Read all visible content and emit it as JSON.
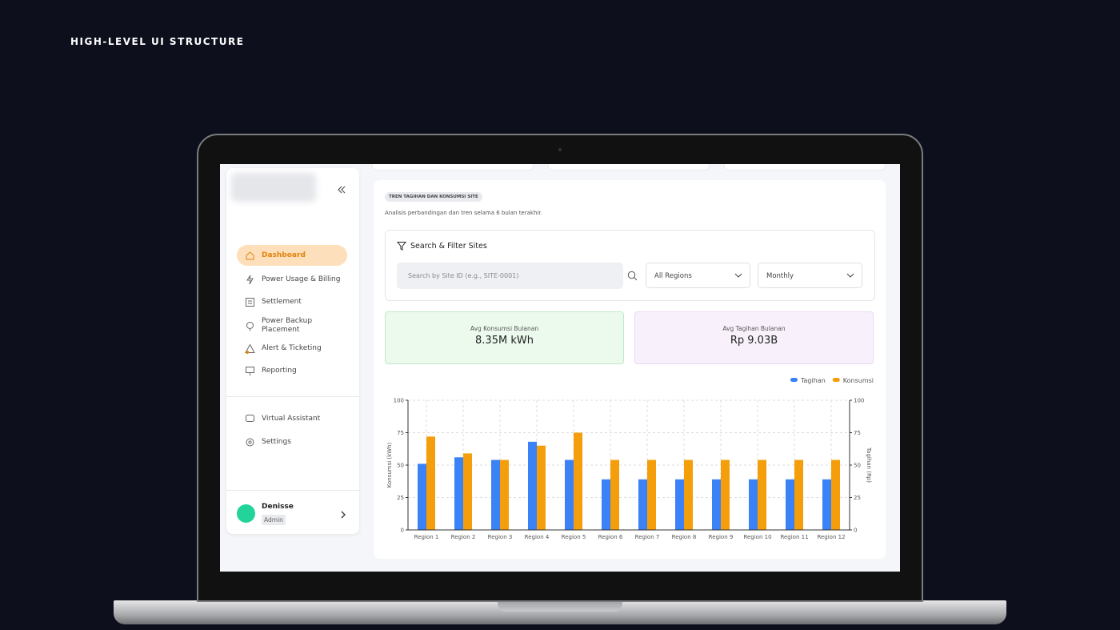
{
  "header": {
    "title": "HIGH-LEVEL UI STRUCTURE"
  },
  "sidebar": {
    "nav": [
      "Dashboard",
      "Power Usage & Billing",
      "Settlement",
      "Power Backup Placement",
      "Alert & Ticketing",
      "Reporting"
    ],
    "secondary": [
      "Virtual Assistant",
      "Settings"
    ],
    "user": {
      "name": "Denisse",
      "role": "Admin"
    }
  },
  "main": {
    "badge": "TREN TAGIHAN DAN KONSUMSI SITE",
    "subtitle": "Analisis perbandingan dan tren selama 6 bulan terakhir.",
    "filter": {
      "title": "Search & Filter Sites",
      "search_placeholder": "Search by Site ID (e.g., SITE-0001)",
      "region_select": "All Regions",
      "period_select": "Monthly"
    },
    "stats": [
      {
        "label": "Avg Konsumsi Bulanan",
        "value": "8.35M kWh"
      },
      {
        "label": "Avg Tagihan Bulanan",
        "value": "Rp 9.03B"
      }
    ]
  },
  "chart_data": {
    "type": "bar",
    "categories": [
      "Region 1",
      "Region 2",
      "Region 3",
      "Region 4",
      "Region 5",
      "Region 6",
      "Region 7",
      "Region 8",
      "Region 9",
      "Region 10",
      "Region 11",
      "Region 12"
    ],
    "series": [
      {
        "name": "Tagihan",
        "color": "#3b82f6",
        "axis": "y2",
        "values": [
          51,
          56,
          54,
          68,
          54,
          39,
          39,
          39,
          39,
          39,
          39,
          39
        ]
      },
      {
        "name": "Konsumsi",
        "color": "#f59e0b",
        "values": [
          72,
          59,
          54,
          65,
          75,
          54,
          54,
          54,
          54,
          54,
          54,
          54
        ]
      }
    ],
    "ylabel": "Konsumsi (kWh)",
    "y2label": "Tagihan (Rp)",
    "ylim": [
      0,
      100
    ],
    "yticks": [
      0,
      25,
      50,
      75,
      100
    ],
    "y2lim": [
      0,
      100
    ],
    "y2ticks": [
      0,
      25,
      50,
      75,
      100
    ],
    "grid": true,
    "legend": "top-right"
  }
}
